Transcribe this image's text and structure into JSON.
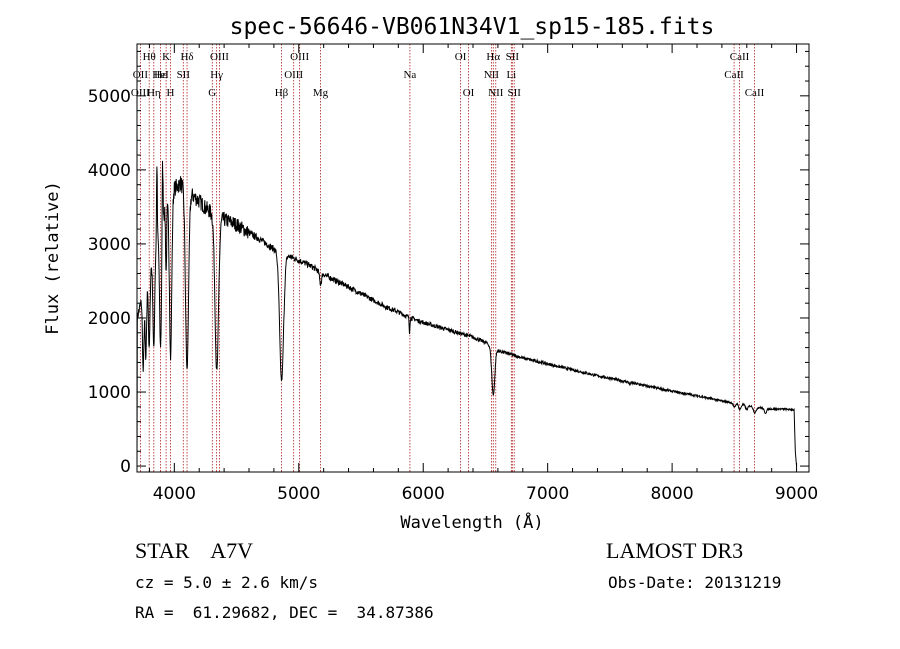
{
  "chart_data": {
    "type": "line",
    "title": "spec-56646-VB061N34V1_sp15-185.fits",
    "xlabel": "Wavelength (Å)",
    "ylabel": "Flux (relative)",
    "xlim": [
      3700,
      9100
    ],
    "ylim": [
      -80,
      5700
    ],
    "xticks": [
      4000,
      5000,
      6000,
      7000,
      8000,
      9000
    ],
    "yticks": [
      0,
      1000,
      2000,
      3000,
      4000,
      5000
    ],
    "xtick_labels": [
      "4000",
      "5000",
      "6000",
      "7000",
      "8000",
      "9000"
    ],
    "ytick_labels": [
      "0",
      "1000",
      "2000",
      "3000",
      "4000",
      "5000"
    ],
    "line_color": "#000000",
    "marker_color": "#b22222",
    "continuum": [
      [
        3700,
        0
      ],
      [
        3702,
        2000
      ],
      [
        3730,
        2200
      ],
      [
        3780,
        2500
      ],
      [
        3820,
        2750
      ],
      [
        3860,
        3050
      ],
      [
        3900,
        3300
      ],
      [
        3950,
        3550
      ],
      [
        4000,
        3750
      ],
      [
        4050,
        3820
      ],
      [
        4100,
        3700
      ],
      [
        4150,
        3650
      ],
      [
        4200,
        3580
      ],
      [
        4250,
        3490
      ],
      [
        4300,
        3420
      ],
      [
        4350,
        3360
      ],
      [
        4400,
        3330
      ],
      [
        4450,
        3300
      ],
      [
        4500,
        3260
      ],
      [
        4600,
        3150
      ],
      [
        4700,
        3050
      ],
      [
        4800,
        2930
      ],
      [
        4900,
        2850
      ],
      [
        5000,
        2780
      ],
      [
        5100,
        2700
      ],
      [
        5200,
        2590
      ],
      [
        5300,
        2500
      ],
      [
        5400,
        2420
      ],
      [
        5500,
        2330
      ],
      [
        5600,
        2240
      ],
      [
        5700,
        2150
      ],
      [
        5800,
        2080
      ],
      [
        5900,
        2000
      ],
      [
        6000,
        1940
      ],
      [
        6200,
        1840
      ],
      [
        6400,
        1740
      ],
      [
        6500,
        1670
      ],
      [
        6600,
        1560
      ],
      [
        6700,
        1510
      ],
      [
        6800,
        1460
      ],
      [
        7000,
        1380
      ],
      [
        7200,
        1300
      ],
      [
        7400,
        1220
      ],
      [
        7600,
        1150
      ],
      [
        7800,
        1080
      ],
      [
        8000,
        1010
      ],
      [
        8200,
        950
      ],
      [
        8400,
        880
      ],
      [
        8500,
        850
      ],
      [
        8600,
        820
      ],
      [
        8700,
        790
      ],
      [
        8800,
        770
      ],
      [
        8900,
        770
      ],
      [
        8980,
        760
      ],
      [
        8990,
        200
      ],
      [
        9000,
        0
      ]
    ],
    "absorption": [
      {
        "center": 3750,
        "depth": 0.45,
        "width": 6
      },
      {
        "center": 3771,
        "depth": 0.42,
        "width": 6
      },
      {
        "center": 3798,
        "depth": 0.4,
        "width": 6
      },
      {
        "center": 3835,
        "depth": 0.45,
        "width": 7
      },
      {
        "center": 3889,
        "depth": 0.5,
        "width": 8
      },
      {
        "center": 3970,
        "depth": 0.6,
        "width": 9
      },
      {
        "center": 3934,
        "depth": 0.25,
        "width": 4
      },
      {
        "center": 4102,
        "depth": 0.65,
        "width": 12
      },
      {
        "center": 4341,
        "depth": 0.62,
        "width": 14
      },
      {
        "center": 4862,
        "depth": 0.6,
        "width": 16
      },
      {
        "center": 5175,
        "depth": 0.06,
        "width": 8
      },
      {
        "center": 5890,
        "depth": 0.1,
        "width": 3
      },
      {
        "center": 6563,
        "depth": 0.4,
        "width": 12
      },
      {
        "center": 7660,
        "depth": 0.03,
        "width": 5
      },
      {
        "center": 8500,
        "depth": 0.07,
        "width": 8
      },
      {
        "center": 8544,
        "depth": 0.09,
        "width": 9
      },
      {
        "center": 8600,
        "depth": 0.07,
        "width": 9
      },
      {
        "center": 8665,
        "depth": 0.1,
        "width": 11
      },
      {
        "center": 8750,
        "depth": 0.08,
        "width": 10
      }
    ],
    "emission": [
      {
        "center": 3860,
        "height": 0.35,
        "width": 3
      },
      {
        "center": 3905,
        "height": 0.3,
        "width": 4
      }
    ],
    "lines": [
      {
        "label": "Hθ",
        "wavelength": 3798,
        "row": 0
      },
      {
        "label": "K",
        "wavelength": 3934,
        "row": 0
      },
      {
        "label": "Hδ",
        "wavelength": 4102,
        "row": 0
      },
      {
        "label": "OIII",
        "wavelength": 4363,
        "row": 0
      },
      {
        "label": "OIII",
        "wavelength": 5007,
        "row": 0
      },
      {
        "label": "OI",
        "wavelength": 6300,
        "row": 0
      },
      {
        "label": "Hα",
        "wavelength": 6563,
        "row": 0
      },
      {
        "label": "SII",
        "wavelength": 6716,
        "row": 0
      },
      {
        "label": "CaII",
        "wavelength": 8542,
        "row": 0
      },
      {
        "label": "OII",
        "wavelength": 3727,
        "row": 1
      },
      {
        "label": "Hε",
        "wavelength": 3889,
        "row": 1
      },
      {
        "label": "HeI",
        "wavelength": 3889,
        "row": 1
      },
      {
        "label": "SII",
        "wavelength": 4072,
        "row": 1
      },
      {
        "label": "Hγ",
        "wavelength": 4340,
        "row": 1
      },
      {
        "label": "OIII",
        "wavelength": 4959,
        "row": 1
      },
      {
        "label": "Na",
        "wavelength": 5893,
        "row": 1
      },
      {
        "label": "NII",
        "wavelength": 6548,
        "row": 1
      },
      {
        "label": "Li",
        "wavelength": 6708,
        "row": 1
      },
      {
        "label": "CaII",
        "wavelength": 8498,
        "row": 1
      },
      {
        "label": "OIII",
        "wavelength": 3727,
        "row": 2
      },
      {
        "label": "Hη",
        "wavelength": 3835,
        "row": 2
      },
      {
        "label": "H",
        "wavelength": 3969,
        "row": 2
      },
      {
        "label": "G",
        "wavelength": 4305,
        "row": 2
      },
      {
        "label": "Hβ",
        "wavelength": 4861,
        "row": 2
      },
      {
        "label": "Mg",
        "wavelength": 5175,
        "row": 2
      },
      {
        "label": "OI",
        "wavelength": 6364,
        "row": 2
      },
      {
        "label": "NII",
        "wavelength": 6583,
        "row": 2
      },
      {
        "label": "SII",
        "wavelength": 6731,
        "row": 2
      },
      {
        "label": "CaII",
        "wavelength": 8662,
        "row": 2
      }
    ]
  },
  "footer": {
    "object_type": "STAR    A7V",
    "survey": "LAMOST DR3",
    "redshift": "cz = 5.0 ± 2.6 km/s",
    "obs_date": "Obs-Date: 20131219",
    "coordinates": "RA =  61.29682, DEC =  34.87386"
  }
}
